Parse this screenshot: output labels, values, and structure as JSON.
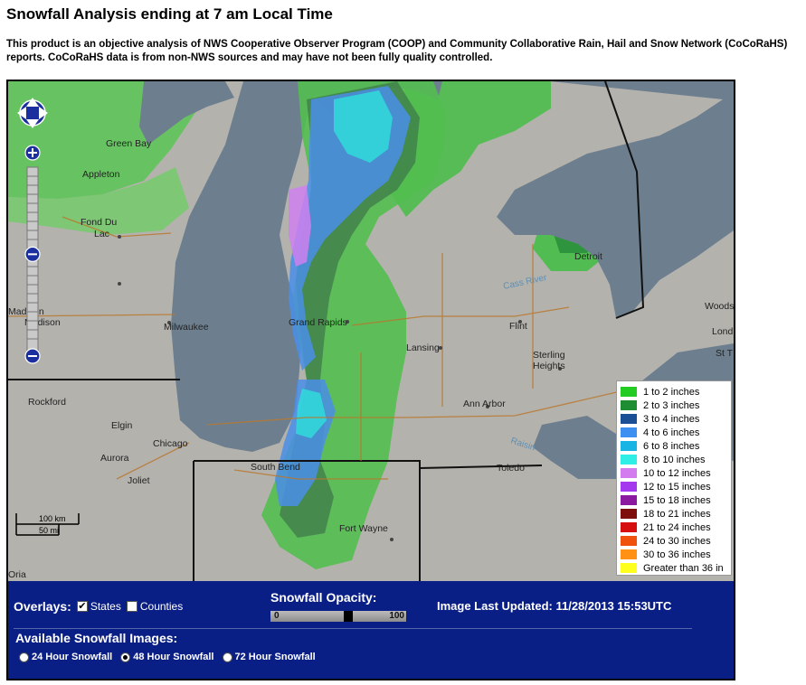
{
  "page": {
    "title": "Snowfall Analysis ending at 7 am Local Time",
    "description_line1": "This product is an objective analysis of NWS Cooperative Observer Program (COOP) and Community Collaborative Rain, Hail and Snow Network (CoCoRaHS)",
    "description_line2": "reports.  CoCoRaHS data is from non-NWS sources and may have not been fully quality controlled."
  },
  "map": {
    "labels": {
      "green_bay": "Green Bay",
      "appleton": "Appleton",
      "fond_du_lac_1": "Fond Du",
      "fond_du_lac_2": "Lac",
      "milwaukee": "Milwaukee",
      "madison_1": "Madison",
      "madison_2": "Madison",
      "rockford": "Rockford",
      "elgin": "Elgin",
      "chicago": "Chicago",
      "aurora": "Aurora",
      "joliet": "Joliet",
      "south_bend": "South Bend",
      "grand_rapids": "Grand Rapids",
      "lansing": "Lansing",
      "flint": "Flint",
      "detroit": "Detroit",
      "sterling_1": "Sterling",
      "sterling_2": "Heights",
      "ann_arbor": "Ann Arbor",
      "toledo": "Toledo",
      "fort_wayne": "Fort Wayne",
      "woods": "Woods",
      "lond": "Lond",
      "st_t": "St T",
      "cass_river": "Cass River",
      "raisin": "Raisin",
      "oria": "Oria"
    },
    "scale": {
      "km": "100 km",
      "mi": "50 mi"
    },
    "icons": [
      "pan-up-icon",
      "pan-down-icon",
      "pan-left-icon",
      "pan-right-icon",
      "zoom-in-icon",
      "zoom-out-icon",
      "zoom-slider-handle"
    ],
    "zoom_level_fraction": 0.47
  },
  "legend": {
    "items": [
      {
        "label": "1 to 2 inches",
        "color": "#22cc22"
      },
      {
        "label": "2 to 3 inches",
        "color": "#1e8c32"
      },
      {
        "label": "3 to 4 inches",
        "color": "#1a4f96"
      },
      {
        "label": "4 to 6 inches",
        "color": "#3d8ff2"
      },
      {
        "label": "6 to 8 inches",
        "color": "#19b4e3"
      },
      {
        "label": "8 to 10 inches",
        "color": "#2eeee6"
      },
      {
        "label": "10 to 12 inches",
        "color": "#d27cf0"
      },
      {
        "label": "12 to 15 inches",
        "color": "#a338ee"
      },
      {
        "label": "15 to 18 inches",
        "color": "#8c1aa0"
      },
      {
        "label": "18 to 21 inches",
        "color": "#7e0d0d"
      },
      {
        "label": "21 to 24 inches",
        "color": "#d60e0e"
      },
      {
        "label": "24 to 30 inches",
        "color": "#f0520e"
      },
      {
        "label": "30 to 36 inches",
        "color": "#ff9114"
      },
      {
        "label": "Greater than 36 in",
        "color": "#ffff1e"
      }
    ]
  },
  "controls": {
    "overlays_label": "Overlays:",
    "states_label": "States",
    "states_checked": true,
    "counties_label": "Counties",
    "counties_checked": false,
    "opacity_label": "Snowfall Opacity:",
    "opacity_min": "0",
    "opacity_max": "100",
    "opacity_value": 58,
    "updated_label": "Image Last Updated: 11/28/2013 15:53UTC",
    "images_label": "Available Snowfall Images:",
    "image_options": [
      {
        "label": "24 Hour Snowfall",
        "selected": false
      },
      {
        "label": "48 Hour Snowfall",
        "selected": true
      },
      {
        "label": "72 Hour Snowfall",
        "selected": false
      }
    ]
  }
}
